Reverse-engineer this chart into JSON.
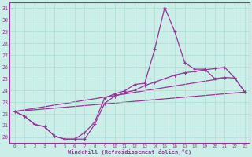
{
  "xlabel": "Windchill (Refroidissement éolien,°C)",
  "bg_color": "#cceee8",
  "line_color": "#993399",
  "grid_color": "#aaddcc",
  "ylim": [
    19.5,
    31.5
  ],
  "xlim": [
    -0.5,
    23.5
  ],
  "yticks": [
    20,
    21,
    22,
    23,
    24,
    25,
    26,
    27,
    28,
    29,
    30,
    31
  ],
  "xticks": [
    0,
    1,
    2,
    3,
    4,
    5,
    6,
    7,
    8,
    9,
    10,
    11,
    12,
    13,
    14,
    15,
    16,
    17,
    18,
    19,
    20,
    21,
    22,
    23
  ],
  "line_spike": {
    "x": [
      0,
      1,
      2,
      3,
      4,
      5,
      6,
      7,
      8,
      9,
      10,
      11,
      12,
      13,
      14,
      15,
      16,
      17,
      18,
      19,
      20,
      21,
      22,
      23
    ],
    "y": [
      22.2,
      21.8,
      21.1,
      20.9,
      20.1,
      19.85,
      19.85,
      20.4,
      21.3,
      23.35,
      23.7,
      23.95,
      24.5,
      24.6,
      27.5,
      31.05,
      29.0,
      26.35,
      25.8,
      25.8,
      25.0,
      25.1,
      25.05,
      23.85
    ]
  },
  "line_curved": {
    "x": [
      0,
      1,
      2,
      3,
      4,
      5,
      6,
      7,
      8,
      9,
      10,
      11,
      12,
      13,
      14,
      15,
      16,
      17,
      18,
      19,
      20,
      21,
      22,
      23
    ],
    "y": [
      22.2,
      21.8,
      21.1,
      20.9,
      20.1,
      19.85,
      19.85,
      19.85,
      21.1,
      22.9,
      23.5,
      23.8,
      24.0,
      24.4,
      24.7,
      25.0,
      25.3,
      25.5,
      25.6,
      25.75,
      25.85,
      25.95,
      25.05,
      23.85
    ]
  },
  "line_diag_upper": {
    "x": [
      0,
      21
    ],
    "y": [
      22.2,
      25.05
    ]
  },
  "line_diag_lower": {
    "x": [
      0,
      23
    ],
    "y": [
      22.2,
      23.85
    ]
  }
}
